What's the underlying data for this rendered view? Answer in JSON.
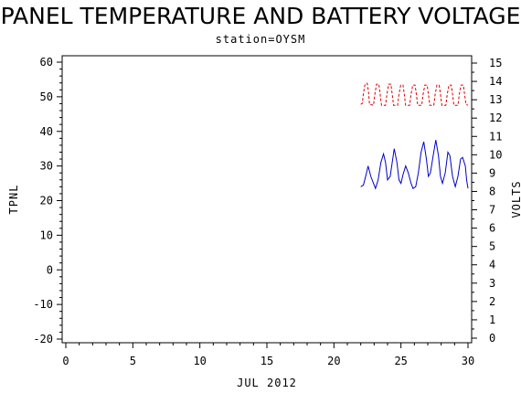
{
  "chart_data": {
    "type": "line",
    "title": "PANEL TEMPERATURE AND BATTERY VOLTAGE",
    "subtitle": "station=OYSM",
    "xlabel": "JUL 2012",
    "ylabel_left": "TPNL",
    "ylabel_right": "VOLTS",
    "xlim": [
      0,
      30
    ],
    "ylim_left": [
      -21,
      62
    ],
    "ylim_right": [
      0,
      15
    ],
    "x_ticks": [
      "0",
      "5",
      "10",
      "15",
      "20",
      "25",
      "30"
    ],
    "y_ticks_left": [
      "-20",
      "-10",
      "0",
      "10",
      "20",
      "30",
      "40",
      "50",
      "60"
    ],
    "y_ticks_right": [
      "0",
      "1",
      "2",
      "3",
      "4",
      "5",
      "6",
      "7",
      "8",
      "9",
      "10",
      "11",
      "12",
      "13",
      "14",
      "15"
    ],
    "grid": false,
    "series": [
      {
        "axis": "left",
        "color": "#0000cc",
        "style": "solid",
        "points": [
          [
            22.0,
            24
          ],
          [
            22.2,
            24.5
          ],
          [
            22.4,
            27.5
          ],
          [
            22.55,
            30
          ],
          [
            22.75,
            27
          ],
          [
            22.95,
            25
          ],
          [
            23.1,
            23.5
          ],
          [
            23.3,
            26
          ],
          [
            23.5,
            31
          ],
          [
            23.7,
            33.5
          ],
          [
            23.85,
            31
          ],
          [
            24.0,
            26
          ],
          [
            24.2,
            27
          ],
          [
            24.35,
            31
          ],
          [
            24.5,
            35
          ],
          [
            24.7,
            31
          ],
          [
            24.85,
            26
          ],
          [
            25.0,
            25
          ],
          [
            25.15,
            27.5
          ],
          [
            25.35,
            30
          ],
          [
            25.55,
            28
          ],
          [
            25.75,
            25
          ],
          [
            25.9,
            23.5
          ],
          [
            26.1,
            24
          ],
          [
            26.3,
            28
          ],
          [
            26.5,
            34
          ],
          [
            26.7,
            37
          ],
          [
            26.9,
            32
          ],
          [
            27.05,
            27
          ],
          [
            27.2,
            28
          ],
          [
            27.4,
            33
          ],
          [
            27.6,
            37.5
          ],
          [
            27.8,
            33
          ],
          [
            27.95,
            27
          ],
          [
            28.1,
            25
          ],
          [
            28.3,
            28
          ],
          [
            28.5,
            34
          ],
          [
            28.65,
            33
          ],
          [
            28.85,
            27
          ],
          [
            29.05,
            24
          ],
          [
            29.25,
            27
          ],
          [
            29.45,
            32
          ],
          [
            29.6,
            32.5
          ],
          [
            29.8,
            30
          ],
          [
            29.9,
            26
          ],
          [
            30.0,
            23.5
          ]
        ]
      },
      {
        "axis": "right",
        "color": "#dd0000",
        "style": "dashed",
        "points": [
          [
            22.0,
            12.75
          ],
          [
            22.12,
            12.8
          ],
          [
            22.2,
            13.35
          ],
          [
            22.32,
            13.85
          ],
          [
            22.48,
            13.9
          ],
          [
            22.58,
            13.4
          ],
          [
            22.66,
            12.75
          ],
          [
            22.95,
            12.7
          ],
          [
            23.05,
            13.3
          ],
          [
            23.18,
            13.85
          ],
          [
            23.35,
            13.85
          ],
          [
            23.45,
            13.3
          ],
          [
            23.55,
            12.7
          ],
          [
            23.85,
            12.7
          ],
          [
            23.95,
            13.3
          ],
          [
            24.08,
            13.85
          ],
          [
            24.25,
            13.85
          ],
          [
            24.35,
            13.3
          ],
          [
            24.45,
            12.7
          ],
          [
            24.75,
            12.7
          ],
          [
            24.85,
            13.3
          ],
          [
            24.98,
            13.8
          ],
          [
            25.15,
            13.8
          ],
          [
            25.25,
            13.3
          ],
          [
            25.35,
            12.7
          ],
          [
            25.65,
            12.7
          ],
          [
            25.75,
            13.3
          ],
          [
            25.88,
            13.8
          ],
          [
            26.05,
            13.8
          ],
          [
            26.15,
            13.3
          ],
          [
            26.25,
            12.7
          ],
          [
            26.55,
            12.7
          ],
          [
            26.65,
            13.3
          ],
          [
            26.78,
            13.8
          ],
          [
            26.95,
            13.8
          ],
          [
            27.05,
            13.3
          ],
          [
            27.15,
            12.7
          ],
          [
            27.45,
            12.7
          ],
          [
            27.55,
            13.3
          ],
          [
            27.68,
            13.8
          ],
          [
            27.85,
            13.8
          ],
          [
            27.95,
            13.3
          ],
          [
            28.05,
            12.7
          ],
          [
            28.35,
            12.7
          ],
          [
            28.45,
            13.3
          ],
          [
            28.58,
            13.8
          ],
          [
            28.75,
            13.8
          ],
          [
            28.85,
            13.3
          ],
          [
            28.95,
            12.7
          ],
          [
            29.25,
            12.7
          ],
          [
            29.35,
            13.3
          ],
          [
            29.48,
            13.8
          ],
          [
            29.65,
            13.8
          ],
          [
            29.75,
            13.3
          ],
          [
            29.85,
            12.75
          ],
          [
            30.0,
            12.7
          ]
        ]
      }
    ]
  }
}
